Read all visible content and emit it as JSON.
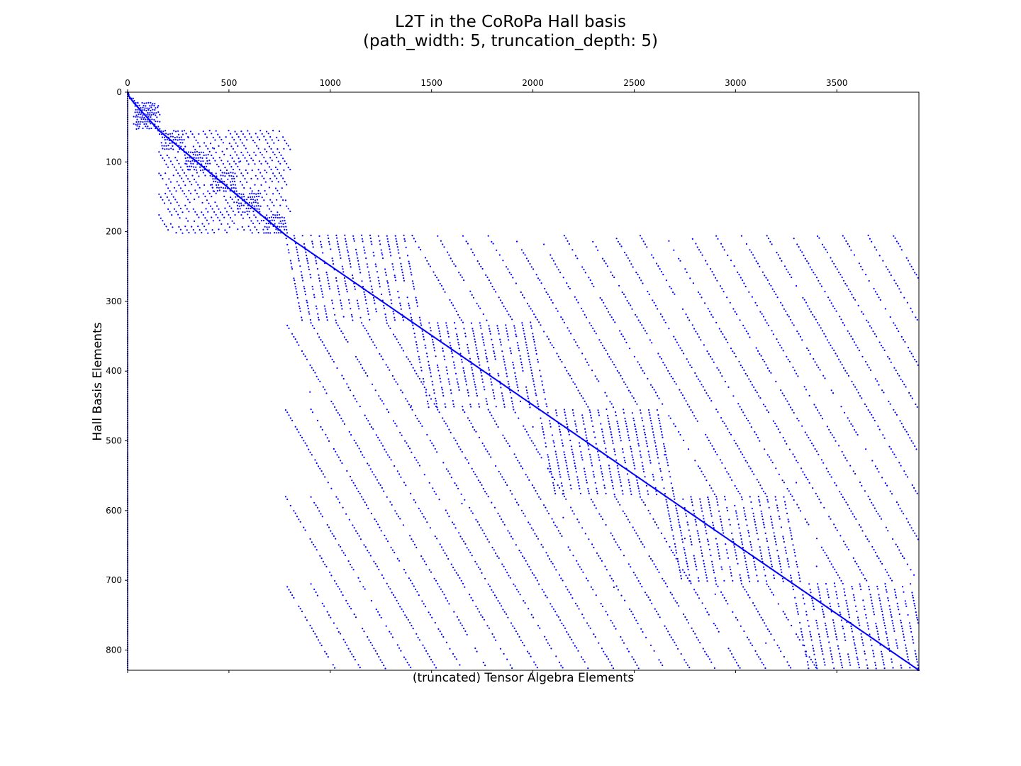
{
  "chart_data": {
    "type": "scatter",
    "title": "L2T in the CoRoPa Hall basis",
    "subtitle": "(path_width: 5, truncation_depth: 5)",
    "xlabel": "(truncated) Tensor Algebra Elements",
    "ylabel": "Hall Basis Elements",
    "x_ticks": [
      0,
      500,
      1000,
      1500,
      2000,
      2500,
      3000,
      3500
    ],
    "y_ticks": [
      0,
      100,
      200,
      300,
      400,
      500,
      600,
      700,
      800
    ],
    "xlim": [
      0,
      3905
    ],
    "ylim": [
      0,
      829
    ],
    "x_axis_position": "top",
    "y_inverted": true,
    "grid": false,
    "marker_color": "#0000ff",
    "marker": "dot",
    "diagonal_blocks": [
      {
        "x": [
          0,
          5
        ],
        "y": [
          0,
          5
        ]
      },
      {
        "x": [
          5,
          30
        ],
        "y": [
          5,
          15
        ]
      },
      {
        "x": [
          30,
          155
        ],
        "y": [
          15,
          55
        ]
      },
      {
        "x": [
          155,
          780
        ],
        "y": [
          55,
          205
        ]
      },
      {
        "x": [
          780,
          3905
        ],
        "y": [
          205,
          829
        ]
      }
    ],
    "representative_points": [
      {
        "x": 0,
        "y": 0
      },
      {
        "x": 50,
        "y": 15
      },
      {
        "x": 100,
        "y": 30
      },
      {
        "x": 150,
        "y": 55
      },
      {
        "x": 300,
        "y": 65
      },
      {
        "x": 420,
        "y": 80
      },
      {
        "x": 550,
        "y": 100
      },
      {
        "x": 780,
        "y": 155
      },
      {
        "x": 900,
        "y": 430
      },
      {
        "x": 1400,
        "y": 450
      },
      {
        "x": 2000,
        "y": 480
      },
      {
        "x": 2650,
        "y": 520
      },
      {
        "x": 3300,
        "y": 560
      },
      {
        "x": 1650,
        "y": 590
      },
      {
        "x": 2150,
        "y": 610
      },
      {
        "x": 2750,
        "y": 640
      },
      {
        "x": 3400,
        "y": 680
      },
      {
        "x": 2400,
        "y": 710
      },
      {
        "x": 2900,
        "y": 720
      },
      {
        "x": 3550,
        "y": 760
      },
      {
        "x": 3150,
        "y": 790
      },
      {
        "x": 3900,
        "y": 829
      }
    ]
  }
}
